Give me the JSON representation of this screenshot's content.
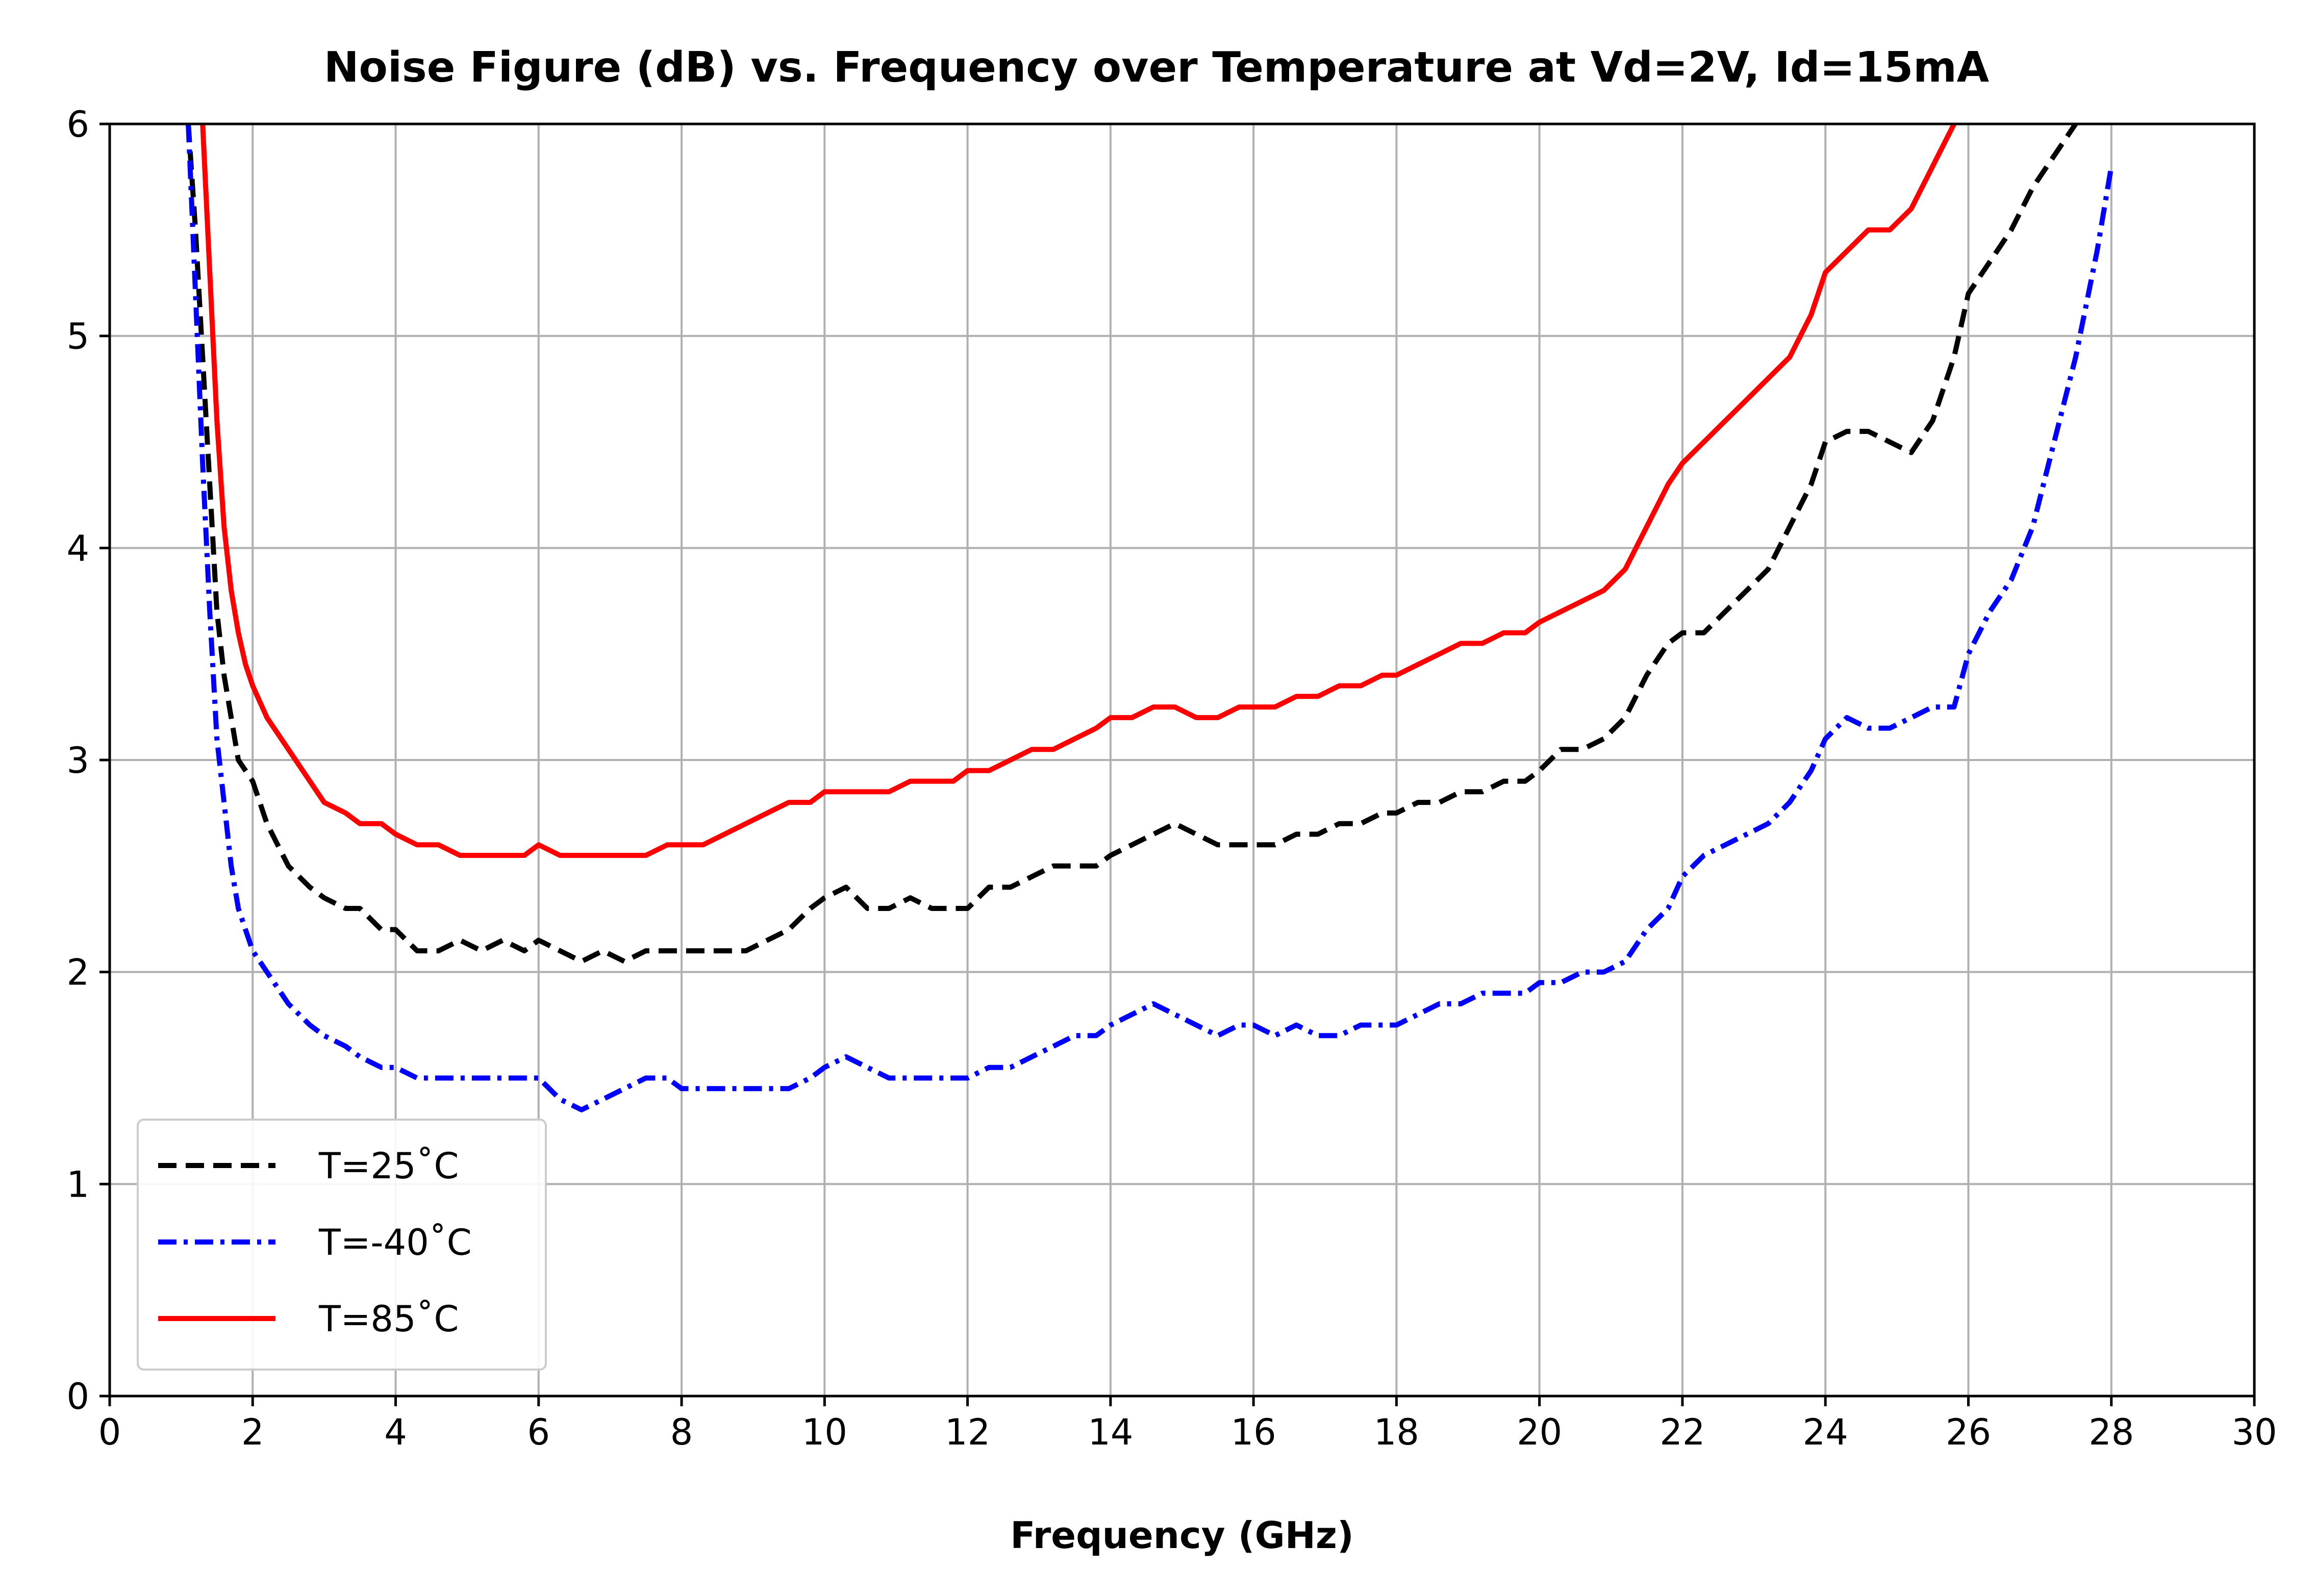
{
  "chart_data": {
    "type": "line",
    "title": "Noise Figure (dB) vs. Frequency over Temperature at Vd=2V, Id=15mA",
    "xlabel": "Frequency (GHz)",
    "ylabel": "",
    "xlim": [
      0,
      30
    ],
    "ylim": [
      0,
      6
    ],
    "xticks": [
      "0",
      "2",
      "4",
      "6",
      "8",
      "10",
      "12",
      "14",
      "16",
      "18",
      "20",
      "22",
      "24",
      "26",
      "28",
      "30"
    ],
    "yticks": [
      "0",
      "1",
      "2",
      "3",
      "4",
      "5",
      "6"
    ],
    "grid": true,
    "legend_position": "bottom-left",
    "series": [
      {
        "name": "T=25˚C",
        "color": "#000000",
        "style": "dashed",
        "x": [
          1.1,
          1.2,
          1.3,
          1.4,
          1.5,
          1.6,
          1.7,
          1.8,
          2.0,
          2.2,
          2.5,
          2.8,
          3.0,
          3.3,
          3.5,
          3.8,
          4.0,
          4.3,
          4.6,
          4.9,
          5.2,
          5.5,
          5.8,
          6.0,
          6.3,
          6.6,
          6.9,
          7.2,
          7.5,
          7.8,
          8.0,
          8.3,
          8.6,
          8.9,
          9.2,
          9.5,
          9.8,
          10.0,
          10.3,
          10.6,
          10.9,
          11.2,
          11.5,
          11.8,
          12.0,
          12.3,
          12.6,
          12.9,
          13.2,
          13.5,
          13.8,
          14.0,
          14.3,
          14.6,
          14.9,
          15.2,
          15.5,
          15.8,
          16.0,
          16.3,
          16.6,
          16.9,
          17.2,
          17.5,
          17.8,
          18.0,
          18.3,
          18.6,
          18.9,
          19.2,
          19.5,
          19.8,
          20.0,
          20.3,
          20.6,
          20.9,
          21.2,
          21.5,
          21.8,
          22.0,
          22.3,
          22.6,
          22.9,
          23.2,
          23.5,
          23.8,
          24.0,
          24.3,
          24.6,
          24.9,
          25.2,
          25.5,
          25.8,
          26.0,
          26.3,
          26.6,
          26.9,
          27.2,
          27.5
        ],
        "values": [
          6.0,
          5.5,
          4.9,
          4.3,
          3.7,
          3.4,
          3.2,
          3.0,
          2.9,
          2.7,
          2.5,
          2.4,
          2.35,
          2.3,
          2.3,
          2.2,
          2.2,
          2.1,
          2.1,
          2.15,
          2.1,
          2.15,
          2.1,
          2.15,
          2.1,
          2.05,
          2.1,
          2.05,
          2.1,
          2.1,
          2.1,
          2.1,
          2.1,
          2.1,
          2.15,
          2.2,
          2.3,
          2.35,
          2.4,
          2.3,
          2.3,
          2.35,
          2.3,
          2.3,
          2.3,
          2.4,
          2.4,
          2.45,
          2.5,
          2.5,
          2.5,
          2.55,
          2.6,
          2.65,
          2.7,
          2.65,
          2.6,
          2.6,
          2.6,
          2.6,
          2.65,
          2.65,
          2.7,
          2.7,
          2.75,
          2.75,
          2.8,
          2.8,
          2.85,
          2.85,
          2.9,
          2.9,
          2.95,
          3.05,
          3.05,
          3.1,
          3.2,
          3.4,
          3.55,
          3.6,
          3.6,
          3.7,
          3.8,
          3.9,
          4.1,
          4.3,
          4.5,
          4.55,
          4.55,
          4.5,
          4.45,
          4.6,
          4.9,
          5.2,
          5.35,
          5.5,
          5.7,
          5.85,
          6.0
        ]
      },
      {
        "name": "T=-40˚C",
        "color": "#0000ff",
        "style": "dashdot",
        "x": [
          1.1,
          1.2,
          1.3,
          1.4,
          1.5,
          1.6,
          1.7,
          1.8,
          2.0,
          2.2,
          2.5,
          2.8,
          3.0,
          3.3,
          3.5,
          3.8,
          4.0,
          4.3,
          4.6,
          4.9,
          5.2,
          5.5,
          5.8,
          6.0,
          6.3,
          6.6,
          6.9,
          7.2,
          7.5,
          7.8,
          8.0,
          8.3,
          8.6,
          8.9,
          9.2,
          9.5,
          9.8,
          10.0,
          10.3,
          10.6,
          10.9,
          11.2,
          11.5,
          11.8,
          12.0,
          12.3,
          12.6,
          12.9,
          13.2,
          13.5,
          13.8,
          14.0,
          14.3,
          14.6,
          14.9,
          15.2,
          15.5,
          15.8,
          16.0,
          16.3,
          16.6,
          16.9,
          17.2,
          17.5,
          17.8,
          18.0,
          18.3,
          18.6,
          18.9,
          19.2,
          19.5,
          19.8,
          20.0,
          20.3,
          20.6,
          20.9,
          21.2,
          21.5,
          21.8,
          22.0,
          22.3,
          22.6,
          22.9,
          23.2,
          23.5,
          23.8,
          24.0,
          24.3,
          24.6,
          24.9,
          25.2,
          25.5,
          25.8,
          26.0,
          26.3,
          26.6,
          26.9,
          27.2,
          27.5,
          27.8,
          28.0
        ],
        "values": [
          6.0,
          5.2,
          4.4,
          3.7,
          3.1,
          2.8,
          2.5,
          2.3,
          2.1,
          2.0,
          1.85,
          1.75,
          1.7,
          1.65,
          1.6,
          1.55,
          1.55,
          1.5,
          1.5,
          1.5,
          1.5,
          1.5,
          1.5,
          1.5,
          1.4,
          1.35,
          1.4,
          1.45,
          1.5,
          1.5,
          1.45,
          1.45,
          1.45,
          1.45,
          1.45,
          1.45,
          1.5,
          1.55,
          1.6,
          1.55,
          1.5,
          1.5,
          1.5,
          1.5,
          1.5,
          1.55,
          1.55,
          1.6,
          1.65,
          1.7,
          1.7,
          1.75,
          1.8,
          1.85,
          1.8,
          1.75,
          1.7,
          1.75,
          1.75,
          1.7,
          1.75,
          1.7,
          1.7,
          1.75,
          1.75,
          1.75,
          1.8,
          1.85,
          1.85,
          1.9,
          1.9,
          1.9,
          1.95,
          1.95,
          2.0,
          2.0,
          2.05,
          2.2,
          2.3,
          2.45,
          2.55,
          2.6,
          2.65,
          2.7,
          2.8,
          2.95,
          3.1,
          3.2,
          3.15,
          3.15,
          3.2,
          3.25,
          3.25,
          3.5,
          3.7,
          3.85,
          4.1,
          4.5,
          4.9,
          5.4,
          5.8
        ]
      },
      {
        "name": "T=85˚C",
        "color": "#ff0000",
        "style": "solid",
        "x": [
          1.3,
          1.4,
          1.5,
          1.6,
          1.7,
          1.8,
          1.9,
          2.0,
          2.2,
          2.5,
          2.8,
          3.0,
          3.3,
          3.5,
          3.8,
          4.0,
          4.3,
          4.6,
          4.9,
          5.2,
          5.5,
          5.8,
          6.0,
          6.3,
          6.6,
          6.9,
          7.2,
          7.5,
          7.8,
          8.0,
          8.3,
          8.6,
          8.9,
          9.2,
          9.5,
          9.8,
          10.0,
          10.3,
          10.6,
          10.9,
          11.2,
          11.5,
          11.8,
          12.0,
          12.3,
          12.6,
          12.9,
          13.2,
          13.5,
          13.8,
          14.0,
          14.3,
          14.6,
          14.9,
          15.2,
          15.5,
          15.8,
          16.0,
          16.3,
          16.6,
          16.9,
          17.2,
          17.5,
          17.8,
          18.0,
          18.3,
          18.6,
          18.9,
          19.2,
          19.5,
          19.8,
          20.0,
          20.3,
          20.6,
          20.9,
          21.2,
          21.5,
          21.8,
          22.0,
          22.3,
          22.6,
          22.9,
          23.2,
          23.5,
          23.8,
          24.0,
          24.3,
          24.6,
          24.9,
          25.2,
          25.5,
          25.8
        ],
        "values": [
          6.0,
          5.3,
          4.6,
          4.1,
          3.8,
          3.6,
          3.45,
          3.35,
          3.2,
          3.05,
          2.9,
          2.8,
          2.75,
          2.7,
          2.7,
          2.65,
          2.6,
          2.6,
          2.55,
          2.55,
          2.55,
          2.55,
          2.6,
          2.55,
          2.55,
          2.55,
          2.55,
          2.55,
          2.6,
          2.6,
          2.6,
          2.65,
          2.7,
          2.75,
          2.8,
          2.8,
          2.85,
          2.85,
          2.85,
          2.85,
          2.9,
          2.9,
          2.9,
          2.95,
          2.95,
          3.0,
          3.05,
          3.05,
          3.1,
          3.15,
          3.2,
          3.2,
          3.25,
          3.25,
          3.2,
          3.2,
          3.25,
          3.25,
          3.25,
          3.3,
          3.3,
          3.35,
          3.35,
          3.4,
          3.4,
          3.45,
          3.5,
          3.55,
          3.55,
          3.6,
          3.6,
          3.65,
          3.7,
          3.75,
          3.8,
          3.9,
          4.1,
          4.3,
          4.4,
          4.5,
          4.6,
          4.7,
          4.8,
          4.9,
          5.1,
          5.3,
          5.4,
          5.5,
          5.5,
          5.6,
          5.8,
          6.0
        ]
      }
    ]
  }
}
